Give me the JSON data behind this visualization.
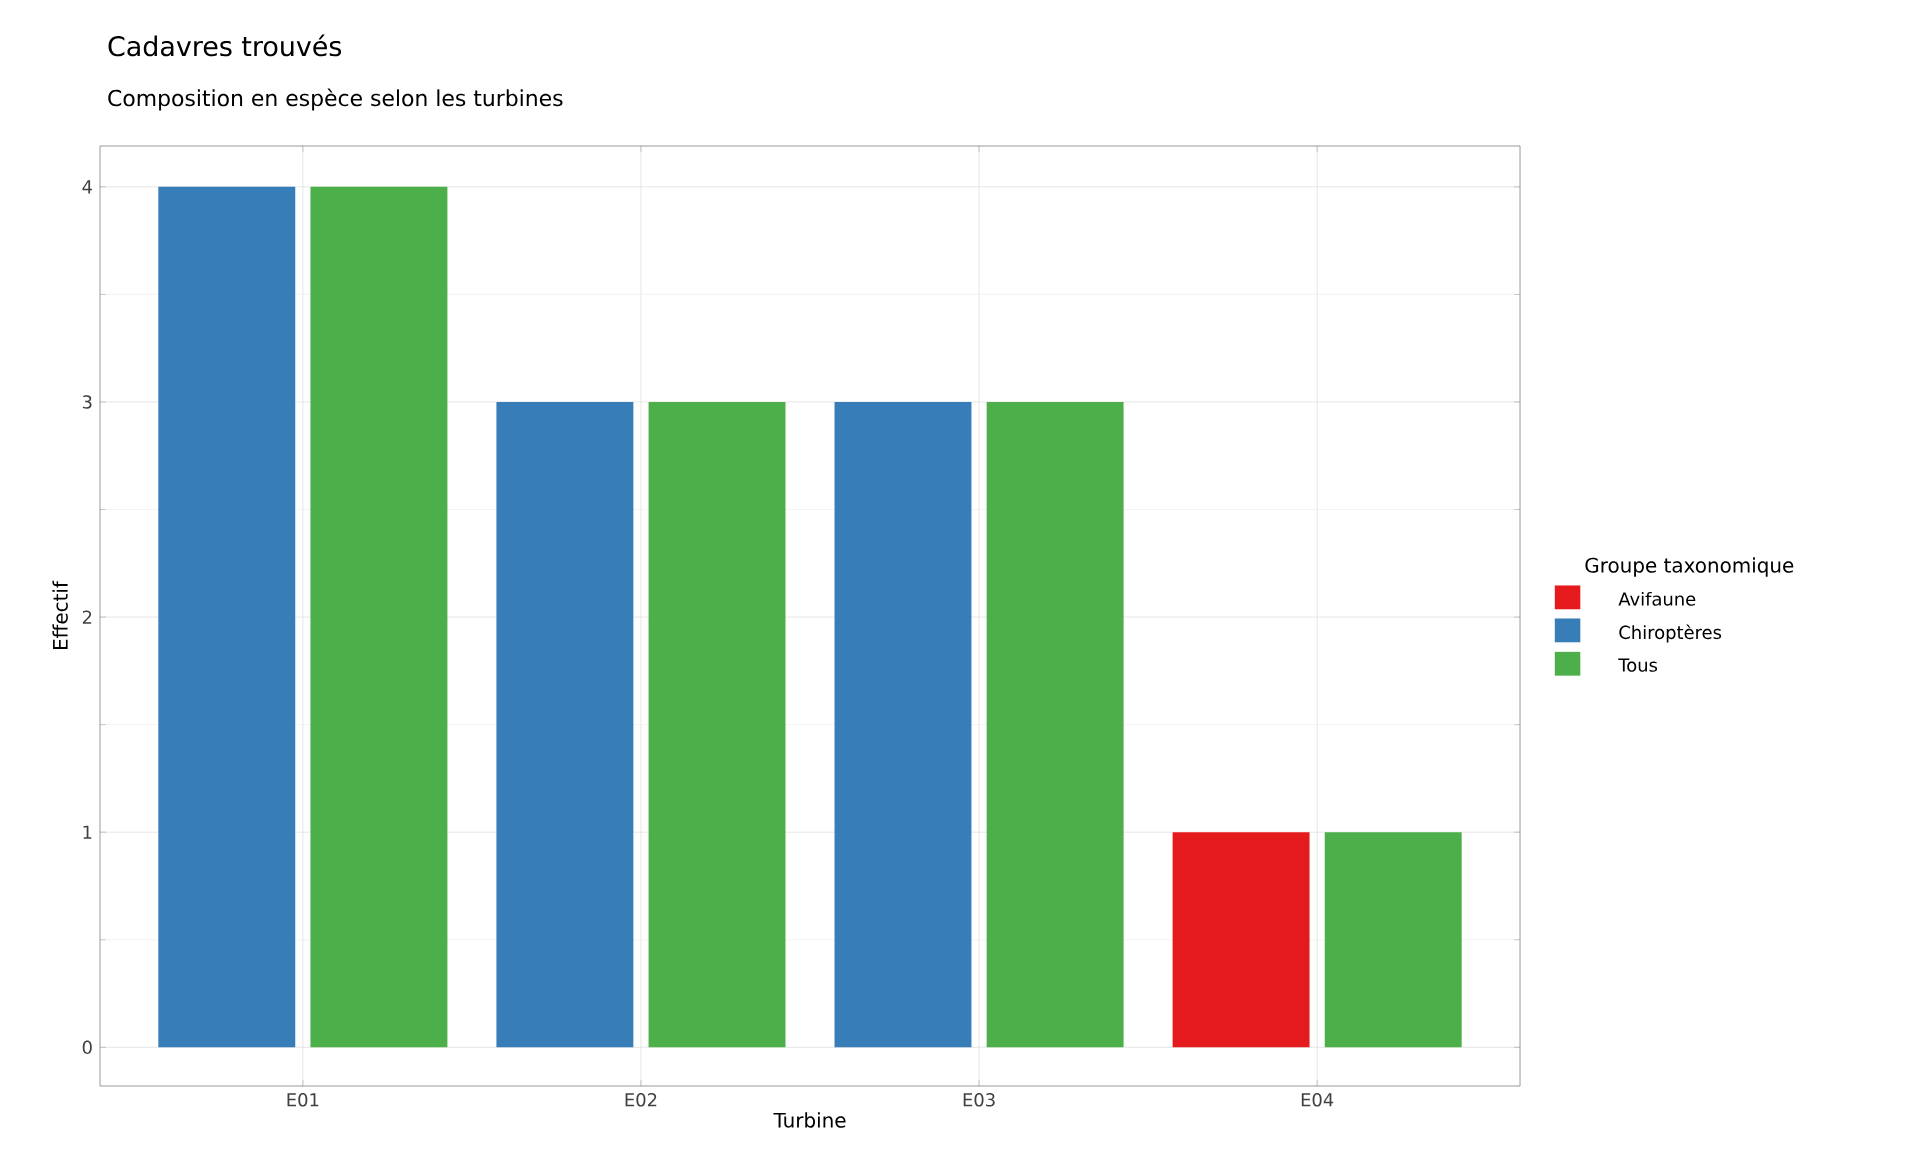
{
  "chart_data": {
    "type": "bar",
    "title": "Cadavres trouvés",
    "subtitle": "Composition en espèce selon les turbines",
    "xlabel": "Turbine",
    "ylabel": "Effectif",
    "legend_title": "Groupe taxonomique",
    "categories": [
      "E01",
      "E02",
      "E03",
      "E04"
    ],
    "series": [
      {
        "name": "Avifaune",
        "color": "#e41a1c",
        "values": [
          null,
          null,
          null,
          1
        ]
      },
      {
        "name": "Chiroptères",
        "color": "#377eb8",
        "values": [
          4,
          3,
          3,
          null
        ]
      },
      {
        "name": "Tous",
        "color": "#4daf4a",
        "values": [
          4,
          3,
          3,
          1
        ]
      }
    ],
    "ylim": [
      -0.18,
      4.19
    ],
    "yticks": [
      0,
      1,
      2,
      3,
      4
    ],
    "grid": true,
    "legend": "right"
  }
}
